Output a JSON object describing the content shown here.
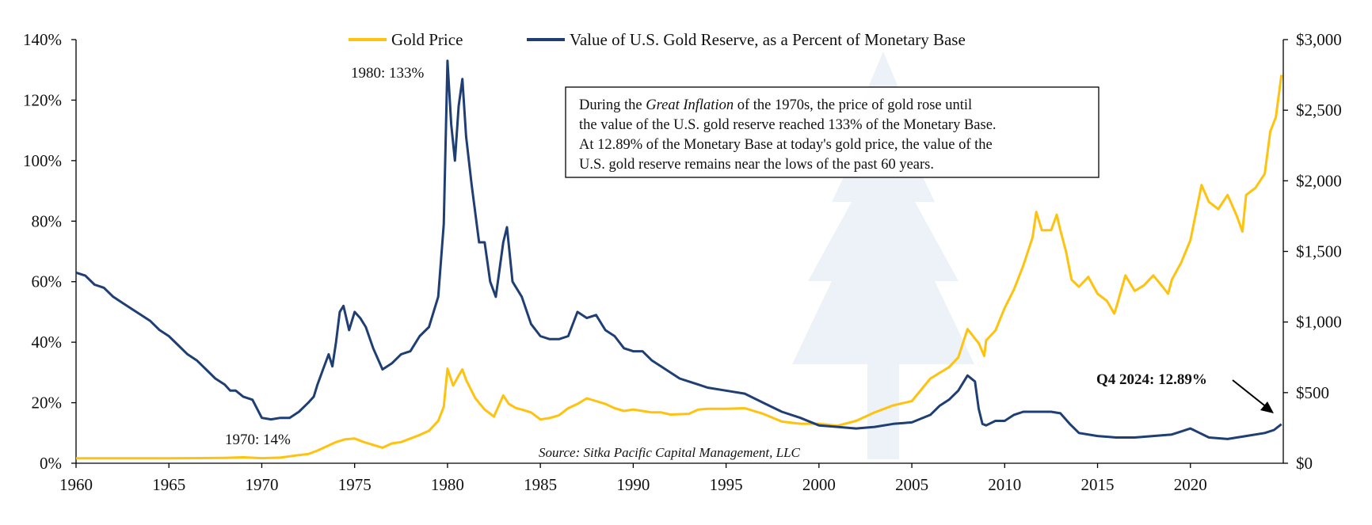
{
  "chart_data": {
    "type": "line",
    "xlim": [
      1960,
      2025
    ],
    "x_ticks": [
      "1960",
      "1965",
      "1970",
      "1975",
      "1980",
      "1985",
      "1990",
      "1995",
      "2000",
      "2005",
      "2010",
      "2015",
      "2020"
    ],
    "y_left": {
      "lim": [
        0,
        140
      ],
      "ticks": [
        "0%",
        "20%",
        "40%",
        "60%",
        "80%",
        "100%",
        "120%",
        "140%"
      ]
    },
    "y_right": {
      "lim": [
        0,
        3000
      ],
      "ticks": [
        "$0",
        "$500",
        "$1,000",
        "$1,500",
        "$2,000",
        "$2,500",
        "$3,000"
      ]
    },
    "legend": [
      {
        "label": "Gold Price",
        "color": "#FFC20E"
      },
      {
        "label": "Value of U.S. Gold Reserve, as a Percent of Monetary Base",
        "color": "#1F3F74"
      }
    ],
    "series": [
      {
        "name": "Value of U.S. Gold Reserve, as a Percent of Monetary Base",
        "axis": "left",
        "color": "#1F3F74",
        "unit": "%",
        "points": [
          [
            1960.0,
            63
          ],
          [
            1960.5,
            62
          ],
          [
            1961.0,
            59
          ],
          [
            1961.5,
            58
          ],
          [
            1962.0,
            55
          ],
          [
            1962.5,
            53
          ],
          [
            1963.0,
            51
          ],
          [
            1963.5,
            49
          ],
          [
            1964.0,
            47
          ],
          [
            1964.5,
            44
          ],
          [
            1965.0,
            42
          ],
          [
            1965.5,
            39
          ],
          [
            1966.0,
            36
          ],
          [
            1966.5,
            34
          ],
          [
            1967.0,
            31
          ],
          [
            1967.5,
            28
          ],
          [
            1968.0,
            26
          ],
          [
            1968.3,
            24
          ],
          [
            1968.6,
            24
          ],
          [
            1969.0,
            22
          ],
          [
            1969.5,
            21
          ],
          [
            1970.0,
            15
          ],
          [
            1970.5,
            14.5
          ],
          [
            1971.0,
            15
          ],
          [
            1971.5,
            15
          ],
          [
            1972.0,
            17
          ],
          [
            1972.5,
            20
          ],
          [
            1972.8,
            22
          ],
          [
            1973.0,
            26
          ],
          [
            1973.3,
            31
          ],
          [
            1973.6,
            36
          ],
          [
            1973.8,
            32
          ],
          [
            1974.0,
            40
          ],
          [
            1974.2,
            50
          ],
          [
            1974.4,
            52
          ],
          [
            1974.7,
            44
          ],
          [
            1975.0,
            50
          ],
          [
            1975.3,
            48
          ],
          [
            1975.6,
            45
          ],
          [
            1976.0,
            38
          ],
          [
            1976.5,
            31
          ],
          [
            1977.0,
            33
          ],
          [
            1977.5,
            36
          ],
          [
            1978.0,
            37
          ],
          [
            1978.5,
            42
          ],
          [
            1979.0,
            45
          ],
          [
            1979.5,
            55
          ],
          [
            1979.8,
            79
          ],
          [
            1980.0,
            133
          ],
          [
            1980.2,
            112
          ],
          [
            1980.4,
            100
          ],
          [
            1980.6,
            118
          ],
          [
            1980.8,
            127
          ],
          [
            1981.0,
            108
          ],
          [
            1981.3,
            92
          ],
          [
            1981.7,
            73
          ],
          [
            1982.0,
            73
          ],
          [
            1982.3,
            60
          ],
          [
            1982.6,
            55
          ],
          [
            1983.0,
            73
          ],
          [
            1983.2,
            78
          ],
          [
            1983.5,
            60
          ],
          [
            1984.0,
            55
          ],
          [
            1984.5,
            46
          ],
          [
            1985.0,
            42
          ],
          [
            1985.5,
            41
          ],
          [
            1986.0,
            41
          ],
          [
            1986.5,
            42
          ],
          [
            1987.0,
            50
          ],
          [
            1987.5,
            48
          ],
          [
            1988.0,
            49
          ],
          [
            1988.5,
            44
          ],
          [
            1989.0,
            42
          ],
          [
            1989.5,
            38
          ],
          [
            1990.0,
            37
          ],
          [
            1990.5,
            37
          ],
          [
            1991.0,
            34
          ],
          [
            1991.5,
            32
          ],
          [
            1992.0,
            30
          ],
          [
            1992.5,
            28
          ],
          [
            1993.0,
            27
          ],
          [
            1993.5,
            26
          ],
          [
            1994.0,
            25
          ],
          [
            1995.0,
            24
          ],
          [
            1996.0,
            23
          ],
          [
            1997.0,
            20
          ],
          [
            1998.0,
            17
          ],
          [
            1999.0,
            15
          ],
          [
            2000.0,
            12.5
          ],
          [
            2001.0,
            12
          ],
          [
            2002.0,
            11.5
          ],
          [
            2003.0,
            12
          ],
          [
            2004.0,
            13
          ],
          [
            2005.0,
            13.5
          ],
          [
            2006.0,
            16
          ],
          [
            2006.5,
            19
          ],
          [
            2007.0,
            21
          ],
          [
            2007.5,
            24
          ],
          [
            2008.0,
            29
          ],
          [
            2008.4,
            27
          ],
          [
            2008.6,
            18
          ],
          [
            2008.8,
            13
          ],
          [
            2009.0,
            12.5
          ],
          [
            2009.5,
            14
          ],
          [
            2010.0,
            14
          ],
          [
            2010.5,
            16
          ],
          [
            2011.0,
            17
          ],
          [
            2011.5,
            17
          ],
          [
            2012.0,
            17
          ],
          [
            2012.5,
            17
          ],
          [
            2013.0,
            16.5
          ],
          [
            2013.5,
            13
          ],
          [
            2014.0,
            10
          ],
          [
            2015.0,
            9
          ],
          [
            2016.0,
            8.5
          ],
          [
            2017.0,
            8.5
          ],
          [
            2018.0,
            9
          ],
          [
            2019.0,
            9.5
          ],
          [
            2019.5,
            10.5
          ],
          [
            2020.0,
            11.5
          ],
          [
            2020.5,
            10
          ],
          [
            2021.0,
            8.5
          ],
          [
            2022.0,
            8
          ],
          [
            2023.0,
            9
          ],
          [
            2024.0,
            10
          ],
          [
            2024.5,
            11
          ],
          [
            2024.9,
            12.89
          ]
        ]
      },
      {
        "name": "Gold Price",
        "axis": "right",
        "color": "#FFC20E",
        "unit": "$",
        "points": [
          [
            1960.0,
            35
          ],
          [
            1965.0,
            35
          ],
          [
            1968.0,
            38
          ],
          [
            1969.0,
            42
          ],
          [
            1970.0,
            36
          ],
          [
            1971.0,
            40
          ],
          [
            1972.0,
            58
          ],
          [
            1972.5,
            65
          ],
          [
            1973.0,
            90
          ],
          [
            1973.5,
            120
          ],
          [
            1974.0,
            150
          ],
          [
            1974.5,
            170
          ],
          [
            1975.0,
            175
          ],
          [
            1975.5,
            150
          ],
          [
            1976.0,
            130
          ],
          [
            1976.5,
            110
          ],
          [
            1977.0,
            140
          ],
          [
            1977.5,
            150
          ],
          [
            1978.0,
            175
          ],
          [
            1978.5,
            200
          ],
          [
            1979.0,
            230
          ],
          [
            1979.5,
            300
          ],
          [
            1979.8,
            400
          ],
          [
            1980.0,
            670
          ],
          [
            1980.3,
            550
          ],
          [
            1980.6,
            620
          ],
          [
            1980.8,
            665
          ],
          [
            1981.0,
            590
          ],
          [
            1981.5,
            460
          ],
          [
            1982.0,
            380
          ],
          [
            1982.5,
            330
          ],
          [
            1983.0,
            480
          ],
          [
            1983.3,
            420
          ],
          [
            1983.7,
            390
          ],
          [
            1984.0,
            380
          ],
          [
            1984.5,
            360
          ],
          [
            1985.0,
            310
          ],
          [
            1985.5,
            320
          ],
          [
            1986.0,
            340
          ],
          [
            1986.5,
            390
          ],
          [
            1987.0,
            420
          ],
          [
            1987.5,
            460
          ],
          [
            1988.0,
            440
          ],
          [
            1988.5,
            420
          ],
          [
            1989.0,
            390
          ],
          [
            1989.5,
            370
          ],
          [
            1990.0,
            380
          ],
          [
            1990.5,
            370
          ],
          [
            1991.0,
            360
          ],
          [
            1991.5,
            360
          ],
          [
            1992.0,
            345
          ],
          [
            1993.0,
            350
          ],
          [
            1993.5,
            380
          ],
          [
            1994.0,
            385
          ],
          [
            1995.0,
            385
          ],
          [
            1996.0,
            390
          ],
          [
            1997.0,
            350
          ],
          [
            1998.0,
            295
          ],
          [
            1999.0,
            280
          ],
          [
            2000.0,
            280
          ],
          [
            2001.0,
            265
          ],
          [
            2002.0,
            300
          ],
          [
            2003.0,
            360
          ],
          [
            2004.0,
            410
          ],
          [
            2005.0,
            440
          ],
          [
            2006.0,
            600
          ],
          [
            2007.0,
            680
          ],
          [
            2007.5,
            750
          ],
          [
            2008.0,
            950
          ],
          [
            2008.6,
            850
          ],
          [
            2008.9,
            760
          ],
          [
            2009.0,
            870
          ],
          [
            2009.5,
            940
          ],
          [
            2010.0,
            1100
          ],
          [
            2010.5,
            1230
          ],
          [
            2011.0,
            1400
          ],
          [
            2011.5,
            1600
          ],
          [
            2011.7,
            1780
          ],
          [
            2012.0,
            1650
          ],
          [
            2012.5,
            1650
          ],
          [
            2012.8,
            1760
          ],
          [
            2013.0,
            1650
          ],
          [
            2013.3,
            1500
          ],
          [
            2013.6,
            1300
          ],
          [
            2014.0,
            1250
          ],
          [
            2014.5,
            1320
          ],
          [
            2015.0,
            1200
          ],
          [
            2015.5,
            1150
          ],
          [
            2015.9,
            1060
          ],
          [
            2016.0,
            1100
          ],
          [
            2016.5,
            1330
          ],
          [
            2017.0,
            1220
          ],
          [
            2017.5,
            1260
          ],
          [
            2018.0,
            1330
          ],
          [
            2018.5,
            1250
          ],
          [
            2018.8,
            1200
          ],
          [
            2019.0,
            1300
          ],
          [
            2019.5,
            1420
          ],
          [
            2020.0,
            1580
          ],
          [
            2020.6,
            1970
          ],
          [
            2021.0,
            1850
          ],
          [
            2021.5,
            1800
          ],
          [
            2022.0,
            1900
          ],
          [
            2022.5,
            1750
          ],
          [
            2022.8,
            1640
          ],
          [
            2023.0,
            1900
          ],
          [
            2023.5,
            1950
          ],
          [
            2024.0,
            2050
          ],
          [
            2024.3,
            2350
          ],
          [
            2024.6,
            2450
          ],
          [
            2024.9,
            2750
          ]
        ]
      }
    ],
    "annotations": [
      {
        "text": "1980: 133%"
      },
      {
        "text": "1970: 14%"
      },
      {
        "text": "Q4 2024: 12.89%"
      }
    ],
    "note_lines": [
      [
        "During the ",
        "Great Inflation",
        " of the 1970s, the price of gold rose until"
      ],
      "the value of the U.S. gold reserve reached 133% of the Monetary Base.",
      "At 12.89% of the Monetary Base at today's gold price, the value of the",
      "U.S. gold reserve remains near the lows of the past 60 years."
    ],
    "source": "Source: Sitka Pacific Capital Management, LLC"
  }
}
